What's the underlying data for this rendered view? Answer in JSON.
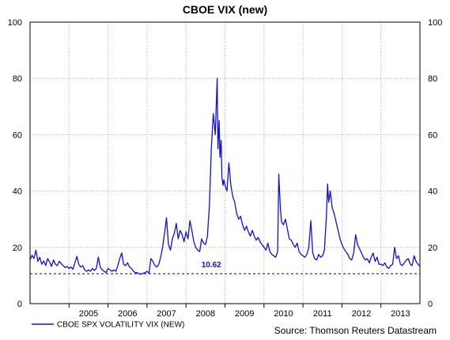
{
  "chart_data": {
    "type": "line",
    "title": "CBOE VIX (new)",
    "ylim": [
      0,
      100
    ],
    "y_ticks": [
      0,
      20,
      40,
      60,
      80,
      100
    ],
    "x_ticks": [
      "2005",
      "2006",
      "2007",
      "2008",
      "2009",
      "2010",
      "2011",
      "2012",
      "2013"
    ],
    "xlim": [
      2004.0,
      2014.0
    ],
    "grid": true,
    "legend_position": "bottom-left",
    "source": "Source: Thomson Reuters Datastream",
    "colors": {
      "series": "#1010e0",
      "grid": "#9a9a9a"
    },
    "reference_line": {
      "value": 10.62,
      "label": "10.62",
      "style": "dashed"
    },
    "series": [
      {
        "name": "CBOE SPX VOLATILITY VIX (NEW)",
        "x": [
          2004.0,
          2004.05,
          2004.1,
          2004.15,
          2004.2,
          2004.25,
          2004.3,
          2004.35,
          2004.4,
          2004.45,
          2004.5,
          2004.55,
          2004.6,
          2004.65,
          2004.7,
          2004.75,
          2004.8,
          2004.85,
          2004.9,
          2004.95,
          2005.0,
          2005.05,
          2005.1,
          2005.15,
          2005.2,
          2005.25,
          2005.3,
          2005.35,
          2005.4,
          2005.45,
          2005.5,
          2005.55,
          2005.6,
          2005.65,
          2005.7,
          2005.75,
          2005.8,
          2005.85,
          2005.9,
          2005.95,
          2006.0,
          2006.05,
          2006.1,
          2006.15,
          2006.2,
          2006.25,
          2006.3,
          2006.35,
          2006.4,
          2006.45,
          2006.5,
          2006.55,
          2006.6,
          2006.65,
          2006.7,
          2006.75,
          2006.8,
          2006.85,
          2006.9,
          2006.95,
          2007.0,
          2007.05,
          2007.1,
          2007.15,
          2007.2,
          2007.25,
          2007.3,
          2007.35,
          2007.4,
          2007.45,
          2007.5,
          2007.55,
          2007.6,
          2007.65,
          2007.7,
          2007.75,
          2007.8,
          2007.85,
          2007.9,
          2007.95,
          2008.0,
          2008.05,
          2008.1,
          2008.15,
          2008.2,
          2008.25,
          2008.3,
          2008.35,
          2008.4,
          2008.45,
          2008.5,
          2008.55,
          2008.6,
          2008.65,
          2008.7,
          2008.75,
          2008.8,
          2008.82,
          2008.85,
          2008.87,
          2008.9,
          2008.92,
          2008.95,
          2008.97,
          2009.0,
          2009.05,
          2009.1,
          2009.15,
          2009.2,
          2009.25,
          2009.3,
          2009.35,
          2009.4,
          2009.45,
          2009.5,
          2009.55,
          2009.6,
          2009.65,
          2009.7,
          2009.75,
          2009.8,
          2009.85,
          2009.9,
          2009.95,
          2010.0,
          2010.05,
          2010.1,
          2010.15,
          2010.2,
          2010.25,
          2010.3,
          2010.35,
          2010.38,
          2010.42,
          2010.45,
          2010.5,
          2010.55,
          2010.6,
          2010.65,
          2010.7,
          2010.75,
          2010.8,
          2010.85,
          2010.9,
          2010.95,
          2011.0,
          2011.05,
          2011.1,
          2011.15,
          2011.2,
          2011.25,
          2011.3,
          2011.35,
          2011.4,
          2011.45,
          2011.5,
          2011.55,
          2011.6,
          2011.63,
          2011.66,
          2011.7,
          2011.75,
          2011.8,
          2011.85,
          2011.9,
          2011.95,
          2012.0,
          2012.05,
          2012.1,
          2012.15,
          2012.2,
          2012.25,
          2012.3,
          2012.35,
          2012.4,
          2012.45,
          2012.5,
          2012.55,
          2012.6,
          2012.65,
          2012.7,
          2012.75,
          2012.8,
          2012.85,
          2012.9,
          2012.95,
          2013.0,
          2013.05,
          2013.1,
          2013.15,
          2013.2,
          2013.25,
          2013.3,
          2013.35,
          2013.4,
          2013.45,
          2013.5,
          2013.55,
          2013.6,
          2013.65,
          2013.7,
          2013.75,
          2013.8,
          2013.85,
          2013.9,
          2013.95,
          2014.0
        ],
        "values": [
          15.5,
          17.2,
          16.0,
          19.0,
          15.0,
          16.5,
          14.0,
          15.2,
          13.5,
          16.0,
          14.8,
          13.2,
          15.5,
          14.0,
          13.5,
          15.0,
          14.2,
          13.5,
          12.8,
          13.2,
          12.5,
          13.0,
          12.2,
          14.5,
          16.8,
          14.0,
          13.0,
          13.5,
          12.0,
          11.5,
          12.0,
          11.5,
          12.5,
          11.8,
          12.5,
          16.5,
          13.0,
          12.0,
          11.5,
          11.0,
          12.5,
          12.0,
          11.5,
          12.0,
          11.5,
          13.5,
          16.0,
          18.0,
          14.0,
          13.5,
          14.5,
          13.0,
          12.5,
          11.5,
          11.0,
          11.0,
          10.5,
          10.5,
          10.8,
          11.0,
          11.5,
          10.8,
          16.0,
          15.0,
          13.5,
          13.0,
          14.0,
          16.5,
          20.0,
          25.0,
          30.5,
          21.0,
          19.0,
          23.0,
          25.0,
          28.5,
          23.0,
          26.0,
          24.5,
          22.0,
          25.5,
          23.0,
          29.5,
          26.0,
          22.0,
          20.0,
          19.0,
          18.5,
          23.0,
          21.5,
          21.0,
          24.0,
          35.0,
          55.0,
          67.5,
          60.0,
          80.0,
          55.0,
          65.0,
          52.0,
          58.0,
          45.0,
          42.0,
          44.0,
          42.0,
          40.0,
          50.0,
          42.0,
          38.0,
          36.0,
          32.0,
          30.0,
          31.0,
          28.0,
          26.0,
          27.5,
          25.5,
          24.0,
          26.0,
          24.0,
          22.5,
          23.5,
          22.0,
          21.0,
          20.0,
          19.0,
          21.5,
          18.5,
          17.5,
          17.0,
          16.5,
          18.5,
          46.0,
          34.0,
          29.0,
          28.0,
          30.0,
          26.5,
          23.0,
          22.5,
          21.0,
          20.0,
          21.5,
          18.5,
          17.5,
          17.0,
          16.5,
          17.5,
          20.0,
          29.5,
          18.0,
          16.0,
          15.5,
          17.5,
          16.5,
          17.0,
          19.0,
          31.0,
          42.5,
          36.0,
          40.0,
          34.0,
          32.0,
          29.0,
          26.0,
          23.0,
          21.0,
          19.5,
          18.5,
          17.5,
          16.0,
          15.5,
          18.0,
          24.5,
          21.0,
          19.5,
          18.0,
          16.5,
          15.5,
          16.0,
          14.5,
          16.5,
          18.0,
          15.0,
          16.5,
          14.0,
          14.0,
          13.5,
          14.5,
          13.0,
          12.5,
          13.5,
          14.0,
          20.0,
          16.0,
          17.0,
          14.0,
          13.5,
          14.5,
          15.5,
          16.0,
          14.0,
          13.5,
          17.0,
          15.0,
          14.0,
          13.2
        ]
      }
    ]
  }
}
